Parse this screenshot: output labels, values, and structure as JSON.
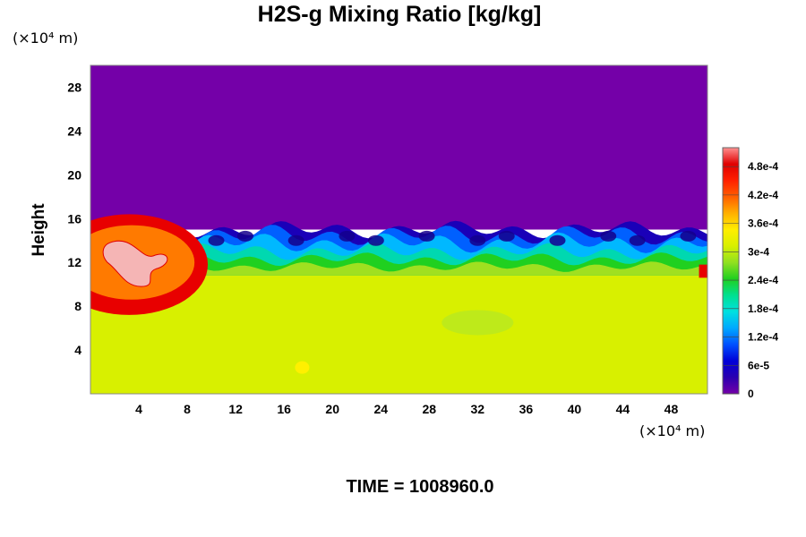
{
  "chart_data": {
    "type": "heatmap",
    "title": "H2S-g Mixing Ratio [kg/kg]",
    "ylabel": "Height",
    "x_unit": "(×10⁴ m)",
    "y_unit": "(×10⁴ m)",
    "x_ticks": [
      4,
      8,
      12,
      16,
      20,
      24,
      28,
      32,
      36,
      40,
      44,
      48
    ],
    "y_ticks": [
      4,
      8,
      12,
      16,
      20,
      24,
      28
    ],
    "xlim": [
      0,
      51
    ],
    "ylim": [
      0,
      30
    ],
    "colorbar": {
      "ticks": [
        "0",
        "6e-5",
        "1.2e-4",
        "1.8e-4",
        "2.4e-4",
        "3e-4",
        "3.6e-4",
        "4.2e-4",
        "4.8e-4"
      ],
      "tick_values": [
        0,
        6e-05,
        0.00012,
        0.00018,
        0.00024,
        0.0003,
        0.00036,
        0.00042,
        0.00048
      ],
      "range": [
        0,
        0.00052
      ],
      "colors": [
        "#7400a8",
        "#2a00b0",
        "#0000d8",
        "#0050ff",
        "#00a8ff",
        "#00e0e0",
        "#00e090",
        "#20d020",
        "#90e020",
        "#d8f000",
        "#ffee00",
        "#ffb000",
        "#ff6000",
        "#ff2000",
        "#e00000",
        "#ff9090"
      ]
    },
    "field": {
      "upper_region": {
        "y_range": [
          15,
          30
        ],
        "value": 0
      },
      "mixing_layer": {
        "y_range": [
          11,
          15
        ],
        "value_range": [
          0,
          0.00036
        ]
      },
      "lower_region": {
        "y_range": [
          0,
          11
        ],
        "value": 0.00036
      },
      "max_patch": {
        "x_range": [
          0,
          7
        ],
        "y_range": [
          9.5,
          14.5
        ],
        "value": 0.0005
      }
    },
    "footer_label": "TIME = 1008960.0",
    "colors": {
      "upper": "#7400a8",
      "lower": "#d8f000",
      "mid_green": "#20d020",
      "patch": "#f5b5b5"
    }
  }
}
